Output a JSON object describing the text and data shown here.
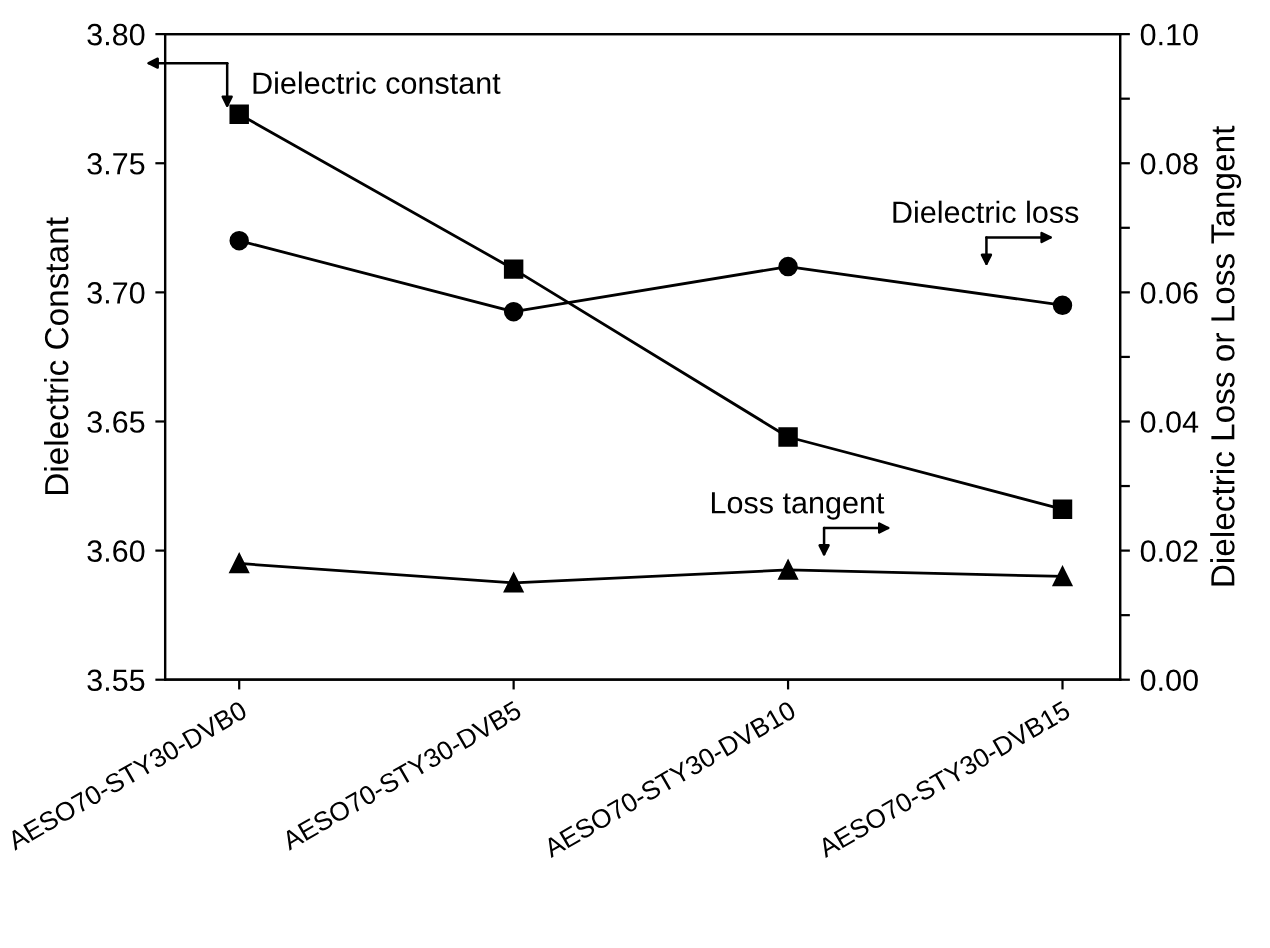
{
  "chart_data": {
    "type": "line",
    "ylabel": "Dielectric Constant",
    "y2label": "Dielectric Loss or Loss Tangent",
    "categories": [
      "AESO70-STY30-DVB0",
      "AESO70-STY30-DVB5",
      "AESO70-STY30-DVB10",
      "AESO70-STY30-DVB15"
    ],
    "series": [
      {
        "color": "#000000",
        "marker": "square",
        "axis": "y",
        "values": [
          3.769,
          3.709,
          3.644,
          3.616
        ]
      },
      {
        "color": "#000000",
        "marker": "circle",
        "axis": "y2",
        "values": [
          0.068,
          0.057,
          0.064,
          0.058
        ]
      },
      {
        "color": "#000000",
        "marker": "triangle",
        "axis": "y2",
        "values": [
          0.018,
          0.015,
          0.017,
          0.016
        ]
      }
    ],
    "ylim": [
      3.55,
      3.8
    ],
    "yticks": [
      3.55,
      {
        "value": 3.6,
        "label": "3.60"
      },
      3.65,
      {
        "value": 3.7,
        "label": "3.70"
      },
      3.75,
      {
        "value": 3.8,
        "label": "3.80"
      }
    ],
    "y2lim": [
      0.0,
      0.1
    ],
    "y2ticks": [
      {
        "value": 0.0,
        "label": "0.00"
      },
      {
        "value": 0.01,
        "label": null
      },
      {
        "value": 0.02,
        "label": "0.02"
      },
      {
        "value": 0.03,
        "label": null
      },
      {
        "value": 0.04,
        "label": "0.04"
      },
      {
        "value": 0.05,
        "label": null
      },
      {
        "value": 0.06,
        "label": "0.06"
      },
      {
        "value": 0.07,
        "label": null
      },
      {
        "value": 0.08,
        "label": "0.08"
      },
      {
        "value": 0.09,
        "label": null
      },
      {
        "value": 0.1,
        "label": "0.10"
      }
    ],
    "annotations": [
      "Dielectric constant",
      "Dielectric loss",
      "Loss tangent"
    ],
    "grid": false,
    "legend": false,
    "line_style": "solid"
  }
}
